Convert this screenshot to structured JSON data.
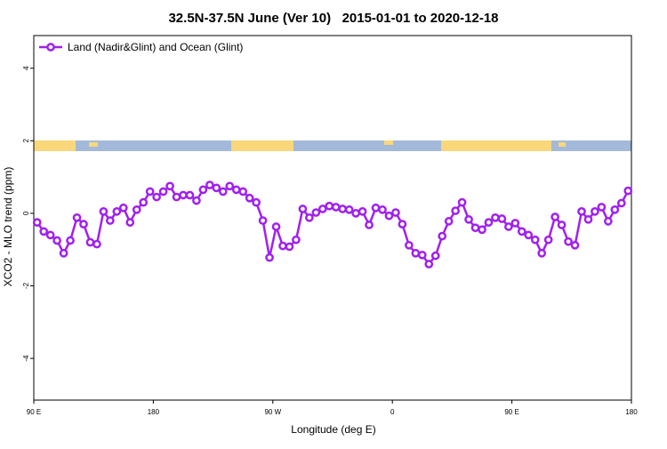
{
  "chart_data": {
    "type": "line",
    "title": "32.5N-37.5N June (Ver 10)   2015-01-01 to 2020-12-18",
    "xlabel": "Longitude (deg E)",
    "ylabel": "XCO2 - MLO trend (ppm)",
    "x": [
      92.5,
      97.5,
      102.5,
      107.5,
      112.5,
      117.5,
      122.5,
      127.5,
      132.5,
      137.5,
      142.5,
      147.5,
      152.5,
      157.5,
      162.5,
      167.5,
      172.5,
      177.5,
      182.5,
      187.5,
      192.5,
      197.5,
      202.5,
      207.5,
      212.5,
      217.5,
      222.5,
      227.5,
      232.5,
      237.5,
      242.5,
      247.5,
      252.5,
      257.5,
      262.5,
      267.5,
      272.5,
      277.5,
      282.5,
      287.5,
      292.5,
      297.5,
      302.5,
      307.5,
      312.5,
      317.5,
      322.5,
      327.5,
      332.5,
      337.5,
      342.5,
      347.5,
      352.5,
      357.5,
      362.5,
      367.5,
      372.5,
      377.5,
      382.5,
      387.5,
      392.5,
      397.5,
      402.5,
      407.5,
      412.5,
      417.5,
      422.5,
      427.5,
      432.5,
      437.5,
      442.5,
      447.5,
      452.5,
      457.5,
      462.5,
      467.5,
      472.5,
      477.5,
      482.5,
      487.5,
      492.5,
      497.5,
      502.5,
      507.5,
      512.5,
      517.5,
      522.5,
      527.5,
      532.5,
      537.5
    ],
    "series": [
      {
        "name": "Land (Nadir&Glint) and Ocean (Glint)",
        "color": "#a020f0",
        "values": [
          -0.25,
          -0.5,
          -0.6,
          -0.75,
          -1.1,
          -0.75,
          -0.12,
          -0.3,
          -0.8,
          -0.85,
          0.05,
          -0.2,
          0.05,
          0.15,
          -0.25,
          0.1,
          0.3,
          0.6,
          0.45,
          0.6,
          0.75,
          0.45,
          0.5,
          0.5,
          0.35,
          0.65,
          0.78,
          0.7,
          0.6,
          0.75,
          0.65,
          0.6,
          0.42,
          0.3,
          -0.2,
          -1.22,
          -0.37,
          -0.9,
          -0.92,
          -0.73,
          0.12,
          -0.12,
          0.02,
          0.12,
          0.2,
          0.17,
          0.12,
          0.1,
          0,
          0.05,
          -0.32,
          0.15,
          0.1,
          -0.07,
          0.02,
          -0.3,
          -0.88,
          -1.1,
          -1.15,
          -1.4,
          -1.17,
          -0.63,
          -0.22,
          0.07,
          0.3,
          -0.17,
          -0.4,
          -0.45,
          -0.25,
          -0.12,
          -0.15,
          -0.37,
          -0.27,
          -0.5,
          -0.6,
          -0.73,
          -1.1,
          -0.73,
          -0.1,
          -0.32,
          -0.78,
          -0.88,
          0.05,
          -0.17,
          0.05,
          0.17,
          -0.22,
          0.1,
          0.28,
          0.62
        ]
      }
    ],
    "xlim": [
      90,
      540
    ],
    "xticks": [
      {
        "value": 90,
        "label": "90 E"
      },
      180,
      {
        "value": 270,
        "label": "90 W"
      },
      {
        "value": 360,
        "label": "0"
      },
      {
        "value": 450,
        "label": "90 E"
      },
      {
        "value": 540,
        "label": "180"
      }
    ],
    "ylim": [
      -5.15,
      4.9
    ],
    "yticks": [
      -4,
      -2,
      0,
      2,
      4
    ],
    "legend": "top-left"
  }
}
